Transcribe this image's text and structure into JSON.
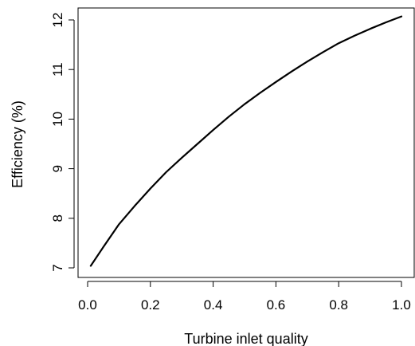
{
  "chart_data": {
    "type": "line",
    "xlabel": "Turbine inlet quality",
    "ylabel": "Efficiency (%)",
    "xlim": [
      0.0,
      1.0
    ],
    "ylim": [
      7,
      12
    ],
    "x_ticks": [
      "0.0",
      "0.2",
      "0.4",
      "0.6",
      "0.8",
      "1.0"
    ],
    "y_ticks": [
      "7",
      "8",
      "9",
      "10",
      "11",
      "12"
    ],
    "grid": false,
    "series": [
      {
        "x": [
          0.01,
          0.05,
          0.1,
          0.15,
          0.2,
          0.25,
          0.3,
          0.35,
          0.4,
          0.45,
          0.5,
          0.55,
          0.6,
          0.65,
          0.7,
          0.75,
          0.8,
          0.85,
          0.9,
          0.95,
          1.0
        ],
        "y": [
          7.04,
          7.42,
          7.88,
          8.25,
          8.6,
          8.93,
          9.22,
          9.5,
          9.78,
          10.05,
          10.3,
          10.53,
          10.75,
          10.96,
          11.16,
          11.35,
          11.53,
          11.68,
          11.82,
          11.95,
          12.07
        ]
      }
    ]
  }
}
